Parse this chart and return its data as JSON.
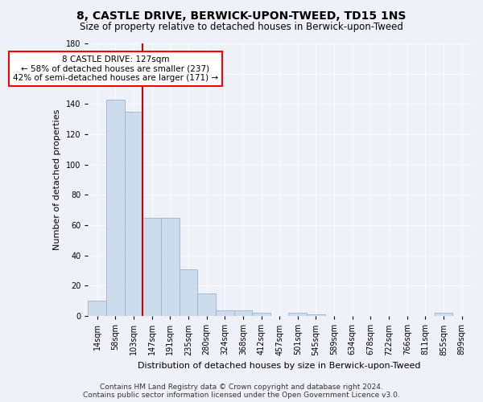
{
  "title": "8, CASTLE DRIVE, BERWICK-UPON-TWEED, TD15 1NS",
  "subtitle": "Size of property relative to detached houses in Berwick-upon-Tweed",
  "xlabel": "Distribution of detached houses by size in Berwick-upon-Tweed",
  "ylabel": "Number of detached properties",
  "categories": [
    "14sqm",
    "58sqm",
    "103sqm",
    "147sqm",
    "191sqm",
    "235sqm",
    "280sqm",
    "324sqm",
    "368sqm",
    "412sqm",
    "457sqm",
    "501sqm",
    "545sqm",
    "589sqm",
    "634sqm",
    "678sqm",
    "722sqm",
    "766sqm",
    "811sqm",
    "855sqm",
    "899sqm"
  ],
  "values": [
    10,
    143,
    135,
    65,
    65,
    31,
    15,
    4,
    4,
    2,
    0,
    2,
    1,
    0,
    0,
    0,
    0,
    0,
    0,
    2,
    0
  ],
  "bar_color": "#ccdcec",
  "bar_edge_color": "#9ab4cc",
  "red_line_x": 2.5,
  "annotation_text": "8 CASTLE DRIVE: 127sqm\n← 58% of detached houses are smaller (237)\n42% of semi-detached houses are larger (171) →",
  "ylim": [
    0,
    180
  ],
  "yticks": [
    0,
    20,
    40,
    60,
    80,
    100,
    120,
    140,
    160,
    180
  ],
  "footer_line1": "Contains HM Land Registry data © Crown copyright and database right 2024.",
  "footer_line2": "Contains public sector information licensed under the Open Government Licence v3.0.",
  "bg_color": "#eef2f8",
  "plot_bg_color": "#eef2f8",
  "grid_color": "#ffffff",
  "title_fontsize": 10,
  "subtitle_fontsize": 8.5,
  "axis_label_fontsize": 8,
  "tick_fontsize": 7,
  "annotation_fontsize": 7.5,
  "footer_fontsize": 6.5
}
